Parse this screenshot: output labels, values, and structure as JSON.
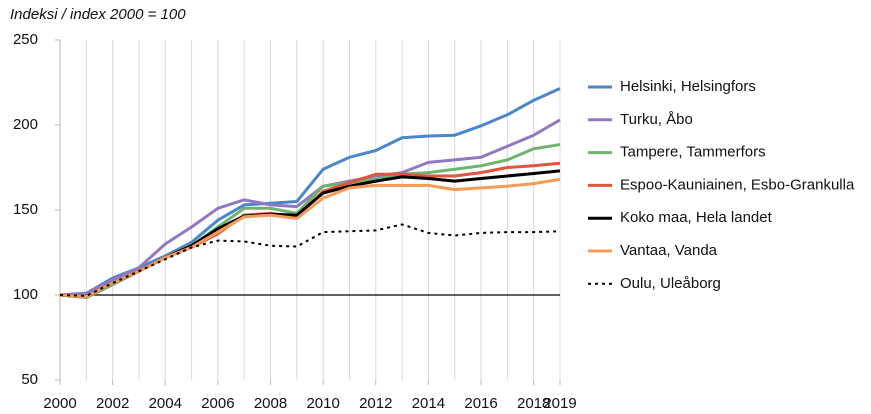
{
  "chart_data": {
    "type": "line",
    "ylabel": "Indeksi / index 2000 = 100",
    "x": [
      2000,
      2001,
      2002,
      2003,
      2004,
      2005,
      2006,
      2007,
      2008,
      2009,
      2010,
      2011,
      2012,
      2013,
      2014,
      2015,
      2016,
      2017,
      2018,
      2019
    ],
    "xlim": [
      2000,
      2019
    ],
    "xticks": [
      2000,
      2002,
      2004,
      2006,
      2008,
      2010,
      2012,
      2014,
      2016,
      2018,
      2019
    ],
    "ylim": [
      50,
      250
    ],
    "yticks": [
      50,
      100,
      150,
      200,
      250
    ],
    "baseline": 100,
    "legend": "right",
    "series": [
      {
        "name": "Helsinki, Helsingfors",
        "color": "#4a86c8",
        "linestyle": "solid",
        "values": [
          100,
          101,
          110,
          116,
          123,
          131,
          144,
          153,
          154,
          155,
          174,
          181,
          185,
          192.5,
          193.5,
          194,
          199.5,
          206,
          214.5,
          221.5
        ]
      },
      {
        "name": "Turku, Åbo",
        "color": "#9079c0",
        "linestyle": "solid",
        "values": [
          100,
          101,
          109,
          116,
          130,
          140,
          151,
          156,
          153,
          152,
          164,
          167,
          170,
          172,
          178,
          179.5,
          181,
          187.5,
          194,
          203
        ]
      },
      {
        "name": "Tampere, Tammerfors",
        "color": "#6db46d",
        "linestyle": "solid",
        "values": [
          100,
          98.5,
          106,
          114,
          122,
          129,
          140,
          151,
          151,
          148,
          164,
          166,
          168,
          171,
          172,
          174,
          176,
          179.5,
          186,
          188.5
        ]
      },
      {
        "name": "Espoo-Kauniainen, Esbo-Grankulla",
        "color": "#e0553b",
        "linestyle": "solid",
        "values": [
          100,
          99,
          107,
          114,
          122,
          128,
          136,
          147,
          148,
          146,
          161,
          166,
          171,
          171,
          170,
          170,
          172,
          175,
          176,
          177.5
        ]
      },
      {
        "name": "Koko maa, Hela landet",
        "color": "#000000",
        "linestyle": "solid",
        "values": [
          100,
          99,
          107,
          114,
          122,
          129,
          139,
          146.5,
          147.5,
          147,
          160,
          164,
          167,
          169.5,
          168.5,
          167,
          168.5,
          170,
          171.5,
          173
        ]
      },
      {
        "name": "Vantaa, Vanda",
        "color": "#f59b57",
        "linestyle": "solid",
        "values": [
          100,
          99,
          107,
          114,
          122,
          128,
          137,
          146,
          147,
          145,
          157,
          163,
          164.5,
          164.5,
          164.5,
          162,
          163,
          164,
          165.5,
          168
        ]
      },
      {
        "name": "Oulu, Uleåborg",
        "color": "#000000",
        "linestyle": "dotted",
        "values": [
          100,
          99.5,
          107,
          114,
          121,
          128,
          132,
          131.5,
          129,
          128.5,
          137,
          137.5,
          138,
          141.5,
          136.5,
          135,
          136.5,
          137,
          137,
          137.5
        ]
      }
    ]
  }
}
